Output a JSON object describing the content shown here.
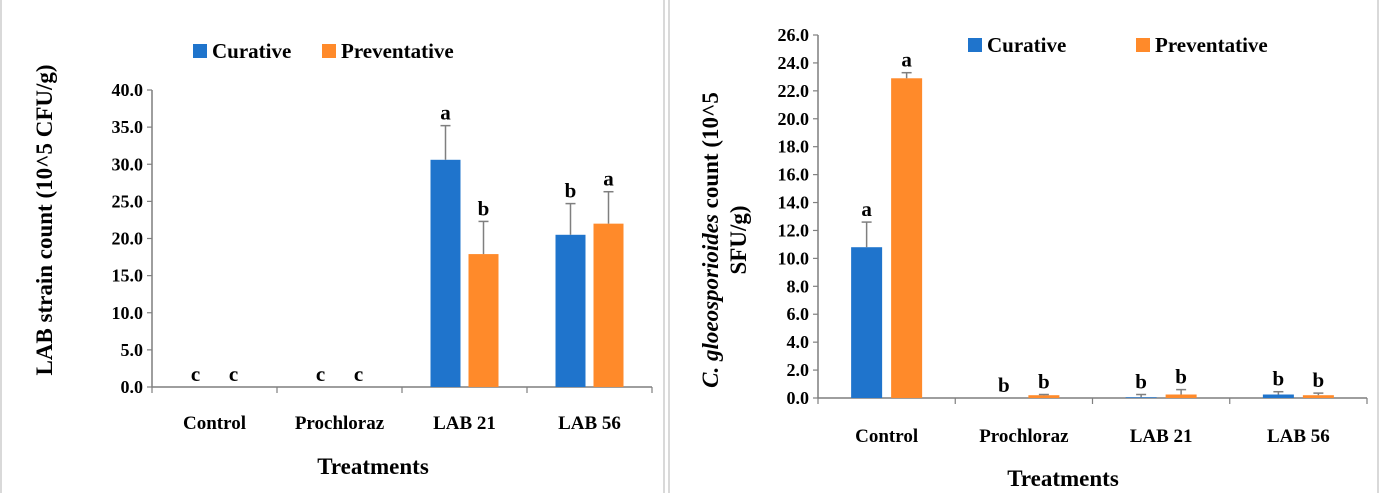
{
  "colors": {
    "curative": "#1F74CC",
    "preventative": "#FF8A2A",
    "axis": "#7f7f7f",
    "error": "#7f7f7f"
  },
  "chart_data": [
    {
      "type": "bar",
      "categories": [
        "Control",
        "Prochloraz",
        "LAB 21",
        "LAB 56"
      ],
      "series": [
        {
          "name": "Curative",
          "values": [
            0,
            0,
            30.6,
            20.5
          ],
          "errors": [
            0,
            0,
            4.6,
            4.2
          ],
          "labels": [
            "c",
            "",
            "a",
            "b"
          ]
        },
        {
          "name": "Preventative",
          "values": [
            0,
            0,
            17.9,
            22.0
          ],
          "errors": [
            0,
            0,
            4.4,
            4.3
          ],
          "labels": [
            "c",
            "c",
            "b",
            "a"
          ]
        }
      ],
      "extra_labels": [
        {
          "category": 1,
          "series": 0,
          "text": "c"
        }
      ],
      "xlabel": "Treatments",
      "ylabel": "LAB strain count (10^5 CFU/g)",
      "ylim": [
        0,
        40
      ],
      "yticks": [
        "0.0",
        "5.0",
        "10.0",
        "15.0",
        "20.0",
        "25.0",
        "30.0",
        "35.0",
        "40.0"
      ],
      "legend": "top",
      "grid": false
    },
    {
      "type": "bar",
      "categories": [
        "Control",
        "Prochloraz",
        "LAB 21",
        "LAB 56"
      ],
      "series": [
        {
          "name": "Curative",
          "values": [
            10.8,
            0,
            0.05,
            0.25
          ],
          "errors": [
            1.8,
            0,
            0.2,
            0.2
          ],
          "labels": [
            "a",
            "b",
            "b",
            "b"
          ]
        },
        {
          "name": "Preventative",
          "values": [
            22.9,
            0.2,
            0.25,
            0.2
          ],
          "errors": [
            0.4,
            0.05,
            0.35,
            0.15
          ],
          "labels": [
            "a",
            "b",
            "b",
            "b"
          ]
        }
      ],
      "xlabel": "Treatments",
      "ylabel_prefix": "C. gloeosporioides",
      "ylabel_rest": " count (10^5",
      "ylabel_line2": "SFU/g)",
      "ylim": [
        0,
        26
      ],
      "yticks": [
        "0.0",
        "2.0",
        "4.0",
        "6.0",
        "8.0",
        "10.0",
        "12.0",
        "14.0",
        "16.0",
        "18.0",
        "20.0",
        "22.0",
        "24.0",
        "26.0"
      ],
      "legend": "top",
      "grid": false
    }
  ]
}
